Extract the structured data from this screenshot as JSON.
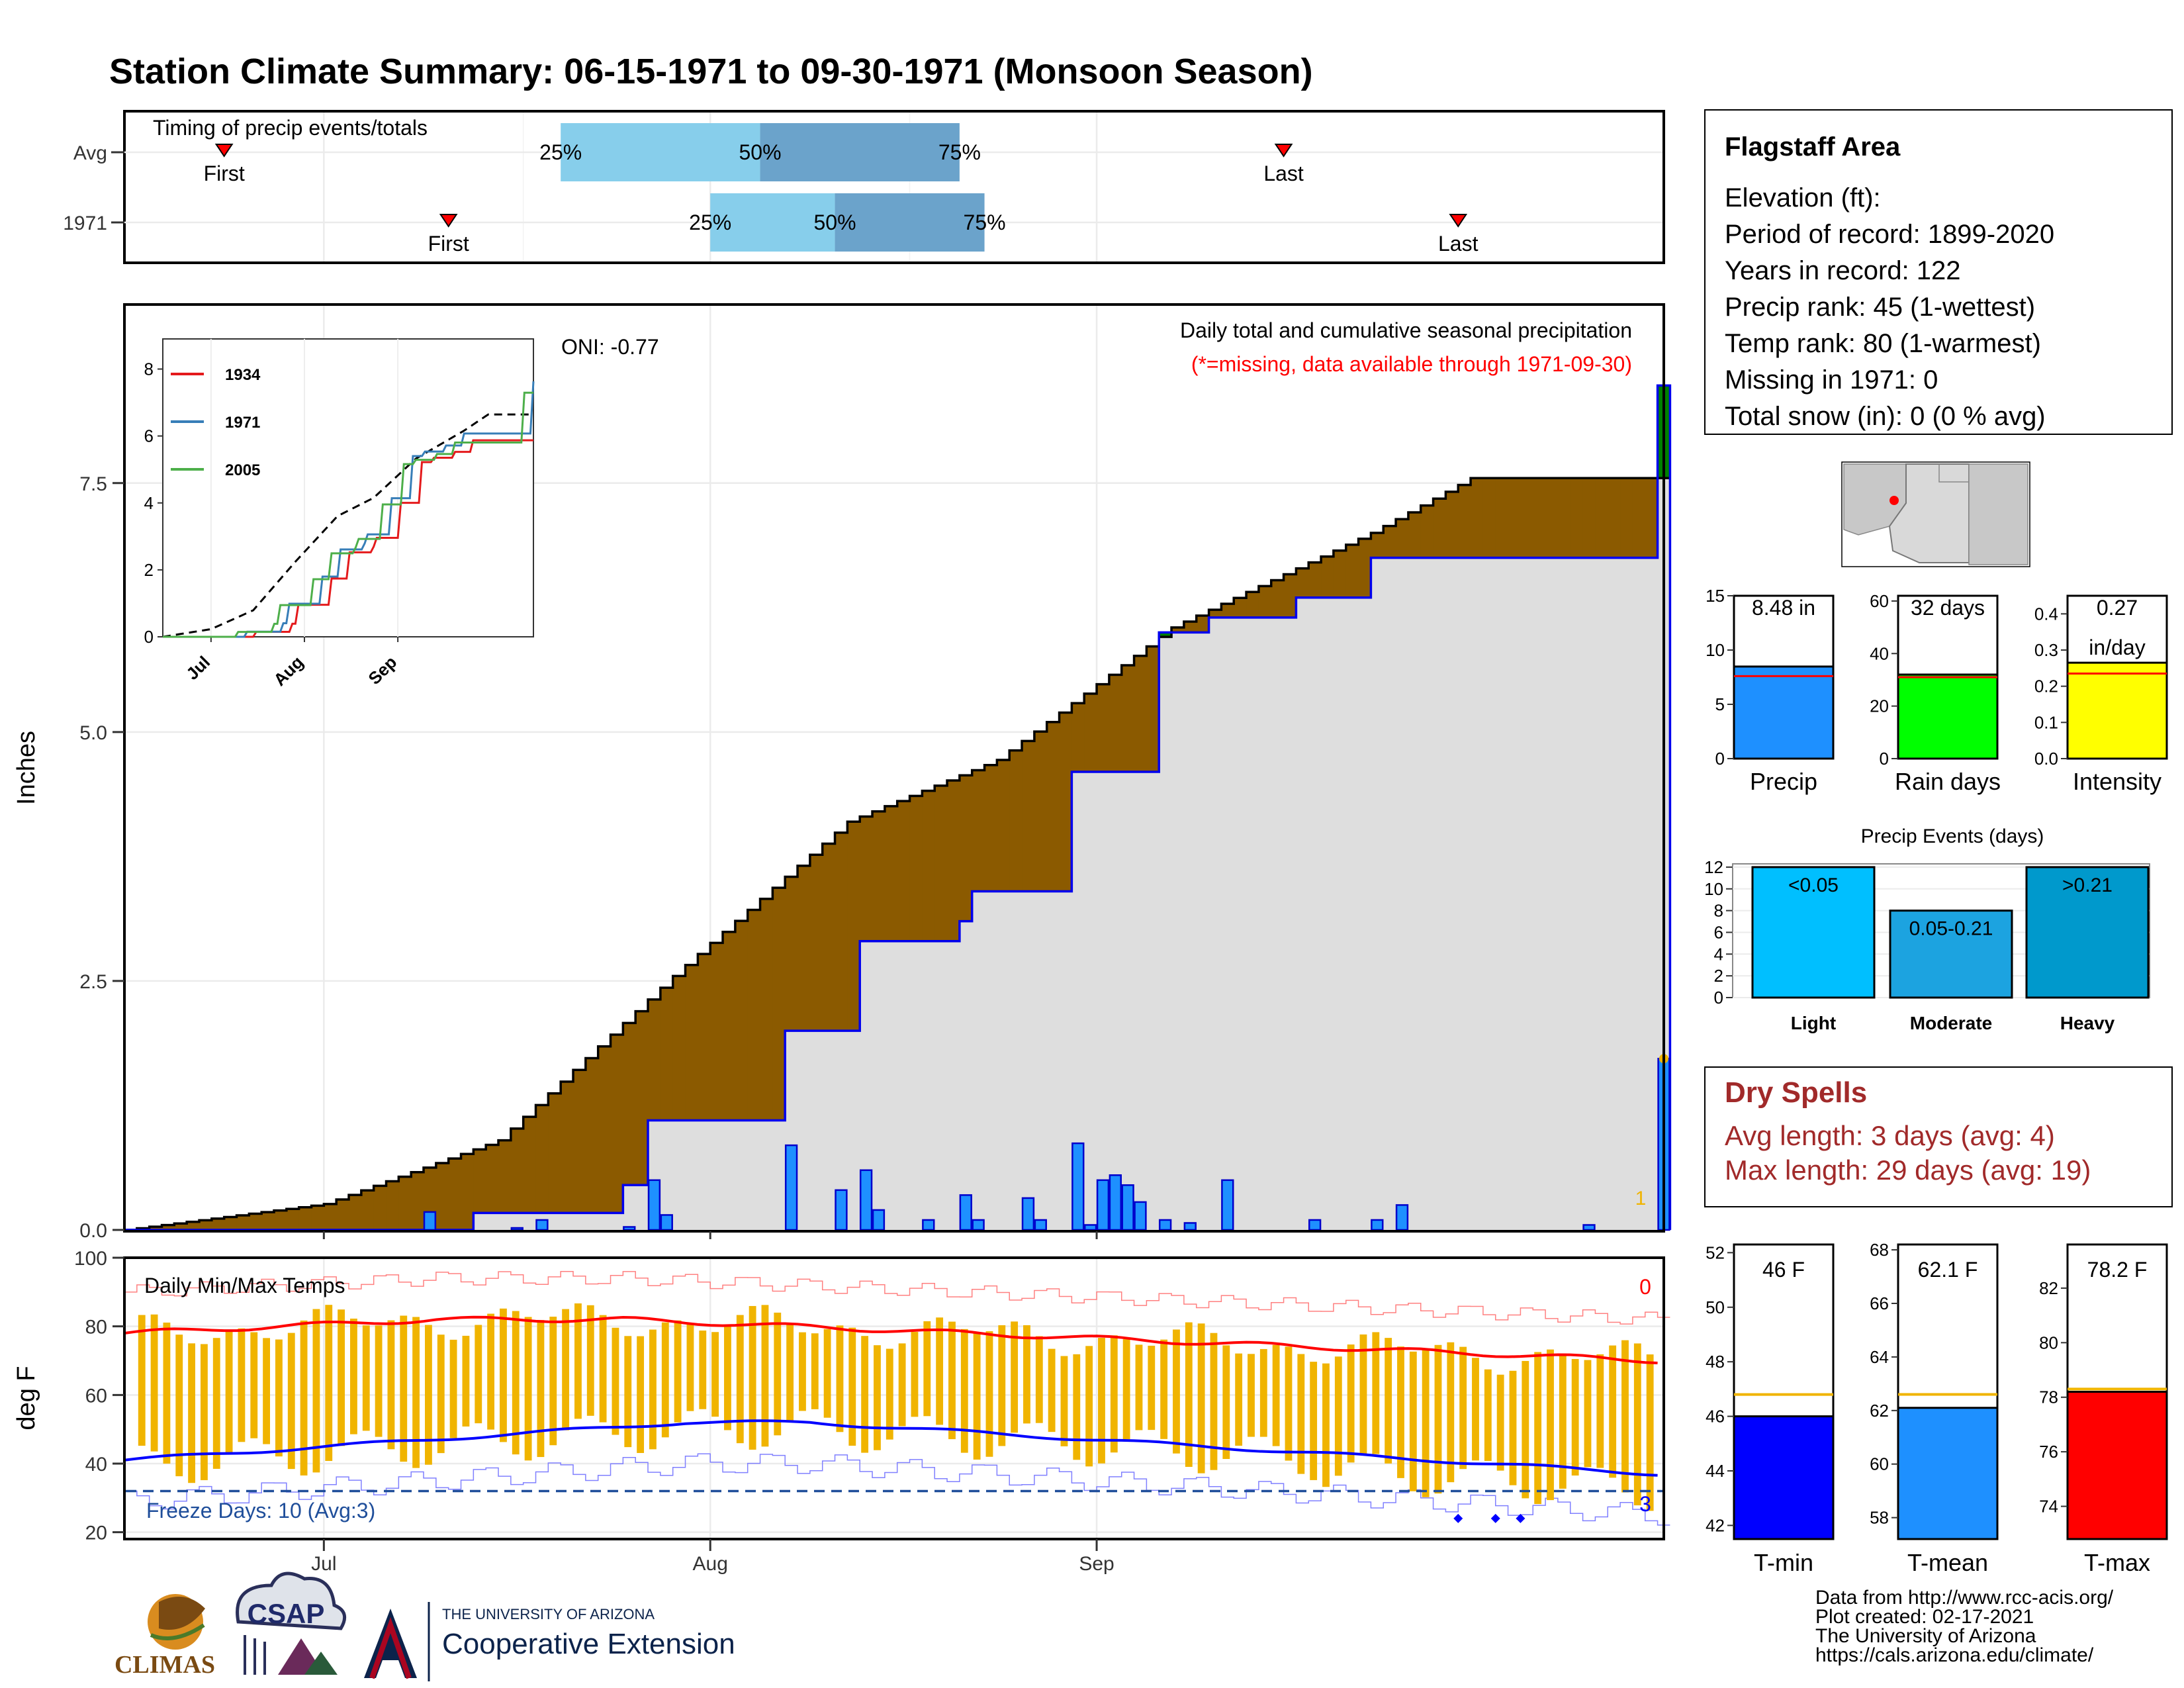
{
  "title": "Station Climate Summary: 06-15-1971 to 09-30-1971 (Monsoon Season)",
  "colors": {
    "title": "#ff0000",
    "cum_avg_fill": "#8b5a00",
    "cum_above_fill": "#008000",
    "daily_bar": "#1e90ff",
    "temp_bar": "#f0b400",
    "max_line": "#ff0000",
    "min_line": "#0000ff",
    "brand_red": "#a12a2a",
    "timing_light": "#87ceeb",
    "timing_dark": "#6ba3cb"
  },
  "timing": {
    "title": "Timing of precip events/totals",
    "rows": [
      {
        "label": "Avg",
        "first_day": 8,
        "p25": 35,
        "p50": 51,
        "p75": 67,
        "last_day": 93,
        "first_label": "First",
        "last_label": "Last",
        "p25_label": "25%",
        "p50_label": "50%",
        "p75_label": "75%"
      },
      {
        "label": "1971",
        "first_day": 26,
        "p25": 47,
        "p50": 57,
        "p75": 69,
        "last_day": 107,
        "first_label": "First",
        "last_label": "Last",
        "p25_label": "25%",
        "p50_label": "50%",
        "p75_label": "75%"
      }
    ]
  },
  "main": {
    "ylabel": "Inches",
    "yticks": [
      "0.0",
      "2.5",
      "5.0",
      "7.5"
    ],
    "oni": "ONI: -0.77",
    "annot_1": "Daily total and cumulative seasonal precipitation",
    "annot_2": "(*=missing, data available through 1971-09-30)",
    "corner_label": "1"
  },
  "inset": {
    "yticks": [
      "0",
      "2",
      "4",
      "6",
      "8"
    ],
    "xticks": [
      "Jul",
      "Aug",
      "Sep"
    ],
    "legend": [
      {
        "name": "1934",
        "color": "#e41a1c"
      },
      {
        "name": "1971",
        "color": "#377eb8"
      },
      {
        "name": "2005",
        "color": "#4daf4a"
      }
    ]
  },
  "temps": {
    "ylabel": "deg F",
    "title": "Daily Min/Max Temps",
    "yticks": [
      "20",
      "40",
      "60",
      "80",
      "100"
    ],
    "freeze_label": "Freeze Days: 10 (Avg:3)",
    "top_count": "0",
    "bottom_count": "3"
  },
  "xaxis": {
    "ticks": [
      "Jul",
      "Aug",
      "Sep"
    ]
  },
  "info": {
    "area": "Flagstaff Area",
    "elevation": "Elevation (ft):",
    "period": "Period of record: 1899-2020",
    "years": "Years in record: 122",
    "precip_rank": "Precip rank: 45 (1-wettest)",
    "temp_rank": "Temp rank: 80 (1-warmest)",
    "missing": "Missing in 1971: 0",
    "snow": "Total snow (in): 0 (0 % avg)"
  },
  "mini_precip": [
    {
      "label": "Precip",
      "value_text": "8.48 in",
      "value": 8.48,
      "avg": 7.6,
      "ymax": 15,
      "yticks": [
        "0",
        "5",
        "10",
        "15"
      ],
      "color": "#1e90ff"
    },
    {
      "label": "Rain days",
      "value_text": "32 days",
      "value": 32,
      "avg": 31,
      "ymax": 62,
      "yticks": [
        "0",
        "20",
        "40",
        "60"
      ],
      "color": "#00ff00"
    },
    {
      "label": "Intensity",
      "value_text": "0.27",
      "value_text_2": "in/day",
      "value": 0.265,
      "avg": 0.235,
      "ymax": 0.45,
      "yticks": [
        "0.0",
        "0.1",
        "0.2",
        "0.3",
        "0.4"
      ],
      "color": "#ffff00"
    }
  ],
  "events": {
    "title": "Precip Events (days)",
    "yticks": [
      "0",
      "2",
      "4",
      "6",
      "8",
      "10",
      "12"
    ],
    "bars": [
      {
        "label": "Light",
        "range": "<0.05",
        "value": 12,
        "color": "#00bfff"
      },
      {
        "label": "Moderate",
        "range": "0.05-0.21",
        "value": 8,
        "color": "#1ca3e0"
      },
      {
        "label": "Heavy",
        "range": ">0.21",
        "value": 12,
        "color": "#0099cc"
      }
    ]
  },
  "dry_spells": {
    "title": "Dry Spells",
    "avg": "Avg length: 3 days (avg: 4)",
    "max": "Max length: 29 days (avg: 19)"
  },
  "mini_temp": [
    {
      "label": "T-min",
      "value_text": "46 F",
      "value": 46,
      "avg": 46.8,
      "ymin": 41.5,
      "ymax": 52.3,
      "ticks": [
        "42",
        "44",
        "46",
        "48",
        "50",
        "52"
      ],
      "color": "#0000ff"
    },
    {
      "label": "T-mean",
      "value_text": "62.1 F",
      "value": 62.1,
      "avg": 62.6,
      "ymin": 57.2,
      "ymax": 68.2,
      "ticks": [
        "58",
        "60",
        "62",
        "64",
        "66",
        "68"
      ],
      "color": "#1e90ff"
    },
    {
      "label": "T-max",
      "value_text": "78.2 F",
      "value": 78.2,
      "avg": 78.3,
      "ymin": 72.8,
      "ymax": 83.6,
      "ticks": [
        "74",
        "76",
        "78",
        "80",
        "82"
      ],
      "color": "#ff0000"
    }
  ],
  "footer": {
    "line1": "Data from http://www.rcc-acis.org/",
    "line2": "Plot created: 02-17-2021",
    "line3": "The University of Arizona",
    "line4": "https://cals.arizona.edu/climate/",
    "logo_climas": "CLIMAS",
    "logo_csap": "CSAP",
    "logo_ua_small": "THE UNIVERSITY OF ARIZONA",
    "logo_ua_big": "Cooperative Extension"
  },
  "chart_data": {
    "type": "area",
    "ylabel": "Inches",
    "ylim": [
      0,
      9.3
    ],
    "x_start": "1971-06-15",
    "x_end": "1971-09-30",
    "series": [
      {
        "name": "",
        "cumulative_avg": [
          [
            0,
            0
          ],
          [
            16,
            0.26
          ],
          [
            30,
            0.9
          ],
          [
            44,
            2.55
          ],
          [
            58,
            4.1
          ],
          [
            70,
            4.72
          ],
          [
            84,
            6.05
          ],
          [
            100,
            7.0
          ],
          [
            108,
            7.55
          ]
        ]
      },
      {
        "name": "",
        "cumulative_1971": [
          [
            0,
            0
          ],
          [
            24,
            0
          ],
          [
            28,
            0.17
          ],
          [
            40,
            0.45
          ],
          [
            42,
            1.1
          ],
          [
            52,
            1.1
          ],
          [
            53,
            2.0
          ],
          [
            58,
            2.0
          ],
          [
            59,
            2.9
          ],
          [
            67,
            3.1
          ],
          [
            68,
            3.4
          ],
          [
            75,
            3.4
          ],
          [
            76,
            4.6
          ],
          [
            82,
            4.6
          ],
          [
            83,
            6.0
          ],
          [
            87,
            6.15
          ],
          [
            94,
            6.35
          ],
          [
            100,
            6.75
          ],
          [
            118,
            6.75
          ],
          [
            123,
            8.48
          ]
        ]
      },
      {
        "name": "",
        "daily_1971": [
          [
            24,
            0.18
          ],
          [
            31,
            0.02
          ],
          [
            33,
            0.1
          ],
          [
            40,
            0.03
          ],
          [
            42,
            0.5
          ],
          [
            43,
            0.15
          ],
          [
            53,
            0.85
          ],
          [
            57,
            0.4
          ],
          [
            59,
            0.6
          ],
          [
            60,
            0.2
          ],
          [
            64,
            0.1
          ],
          [
            67,
            0.35
          ],
          [
            68,
            0.1
          ],
          [
            72,
            0.32
          ],
          [
            73,
            0.1
          ],
          [
            76,
            0.87
          ],
          [
            77,
            0.05
          ],
          [
            78,
            0.5
          ],
          [
            79,
            0.55
          ],
          [
            80,
            0.45
          ],
          [
            81,
            0.28
          ],
          [
            83,
            0.1
          ],
          [
            85,
            0.07
          ],
          [
            88,
            0.5
          ],
          [
            95,
            0.1
          ],
          [
            100,
            0.1
          ],
          [
            102,
            0.25
          ],
          [
            117,
            0.05
          ],
          [
            123,
            1.72
          ]
        ]
      }
    ],
    "temps": {
      "ylim": [
        18,
        100
      ],
      "avg_max_start": 78,
      "avg_max_mid": 82,
      "avg_max_end": 70,
      "avg_min_start": 41,
      "avg_min_mid": 52,
      "avg_min_end": 37,
      "freeze_line": 32
    }
  }
}
